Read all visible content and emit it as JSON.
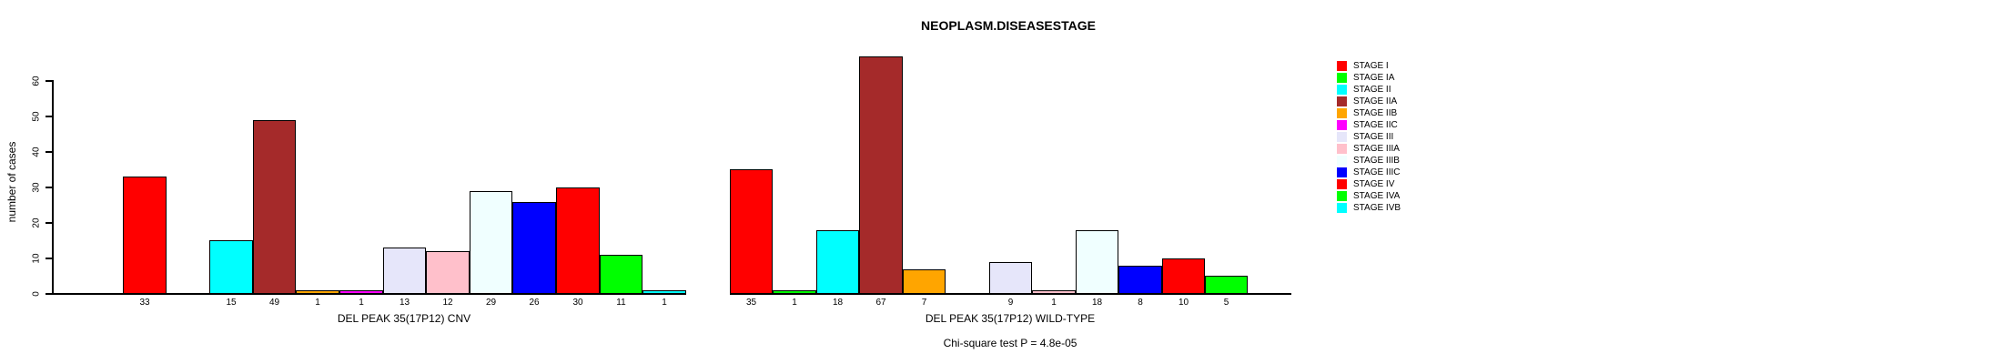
{
  "title": "NEOPLASM.DISEASESTAGE",
  "footnote": "Chi-square test P = 4.8e-05",
  "legend": {
    "position": "right",
    "items": [
      {
        "label": "STAGE I",
        "color": "#FF0000"
      },
      {
        "label": "STAGE IA",
        "color": "#00FF00"
      },
      {
        "label": "STAGE II",
        "color": "#00FFFF"
      },
      {
        "label": "STAGE IIA",
        "color": "#A52A2A"
      },
      {
        "label": "STAGE IIB",
        "color": "#FFA500"
      },
      {
        "label": "STAGE IIC",
        "color": "#FF00FF"
      },
      {
        "label": "STAGE III",
        "color": "#E6E6FA"
      },
      {
        "label": "STAGE IIIA",
        "color": "#FFC0CB"
      },
      {
        "label": "STAGE IIIB",
        "color": "#F0FFFF"
      },
      {
        "label": "STAGE IIIC",
        "color": "#0000FF"
      },
      {
        "label": "STAGE IV",
        "color": "#FF0000"
      },
      {
        "label": "STAGE IVA",
        "color": "#00FF00"
      },
      {
        "label": "STAGE IVB",
        "color": "#00FFFF"
      }
    ]
  },
  "chart_data": [
    {
      "type": "bar",
      "title": "NEOPLASM.DISEASESTAGE",
      "xlabel": "DEL PEAK 35(17P12) CNV",
      "ylabel": "number of cases",
      "ylim": [
        0,
        60
      ],
      "yticks": [
        0,
        10,
        20,
        30,
        40,
        50,
        60
      ],
      "grid": false,
      "categories": [
        "STAGE I",
        "STAGE IA",
        "STAGE II",
        "STAGE IIA",
        "STAGE IIB",
        "STAGE IIC",
        "STAGE III",
        "STAGE IIIA",
        "STAGE IIIB",
        "STAGE IIIC",
        "STAGE IV",
        "STAGE IVA",
        "STAGE IVB"
      ],
      "values": [
        33,
        0,
        15,
        49,
        1,
        1,
        13,
        12,
        29,
        26,
        30,
        11,
        1
      ],
      "colors": [
        "#FF0000",
        "#00FF00",
        "#00FFFF",
        "#A52A2A",
        "#FFA500",
        "#FF00FF",
        "#E6E6FA",
        "#FFC0CB",
        "#F0FFFF",
        "#0000FF",
        "#FF0000",
        "#00FF00",
        "#00FFFF"
      ]
    },
    {
      "type": "bar",
      "title": "NEOPLASM.DISEASESTAGE",
      "xlabel": "DEL PEAK 35(17P12) WILD-TYPE",
      "ylabel": "number of cases",
      "ylim": [
        0,
        60
      ],
      "yticks": [
        0,
        10,
        20,
        30,
        40,
        50,
        60
      ],
      "grid": false,
      "categories": [
        "STAGE I",
        "STAGE IA",
        "STAGE II",
        "STAGE IIA",
        "STAGE IIB",
        "STAGE IIC",
        "STAGE III",
        "STAGE IIIA",
        "STAGE IIIB",
        "STAGE IIIC",
        "STAGE IV",
        "STAGE IVA",
        "STAGE IVB"
      ],
      "values": [
        35,
        1,
        18,
        67,
        7,
        0,
        9,
        1,
        18,
        8,
        10,
        5,
        0
      ],
      "colors": [
        "#FF0000",
        "#00FF00",
        "#00FFFF",
        "#A52A2A",
        "#FFA500",
        "#FF00FF",
        "#E6E6FA",
        "#FFC0CB",
        "#F0FFFF",
        "#0000FF",
        "#FF0000",
        "#00FF00",
        "#00FFFF"
      ]
    }
  ]
}
